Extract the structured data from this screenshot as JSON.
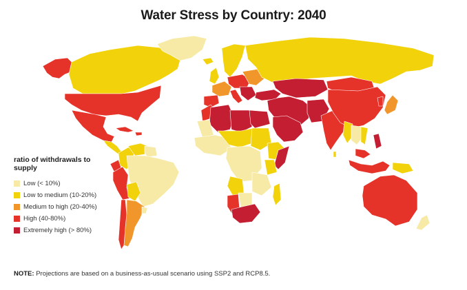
{
  "title": "Water Stress by Country: 2040",
  "legend": {
    "title": "ratio of withdrawals to supply",
    "items": [
      {
        "label": "Low (< 10%)",
        "color": "#f7eaa6"
      },
      {
        "label": "Low to medium (10-20%)",
        "color": "#f2d20a"
      },
      {
        "label": "Medium to high  (20-40%)",
        "color": "#f0962a"
      },
      {
        "label": "High (40-80%)",
        "color": "#e5332a"
      },
      {
        "label": "Extremely high (> 80%)",
        "color": "#c41e32"
      }
    ]
  },
  "note": {
    "prefix": "NOTE:",
    "text": "Projections are based on a business-as-usual scenario using SSP2 and RCP8.5."
  }
}
